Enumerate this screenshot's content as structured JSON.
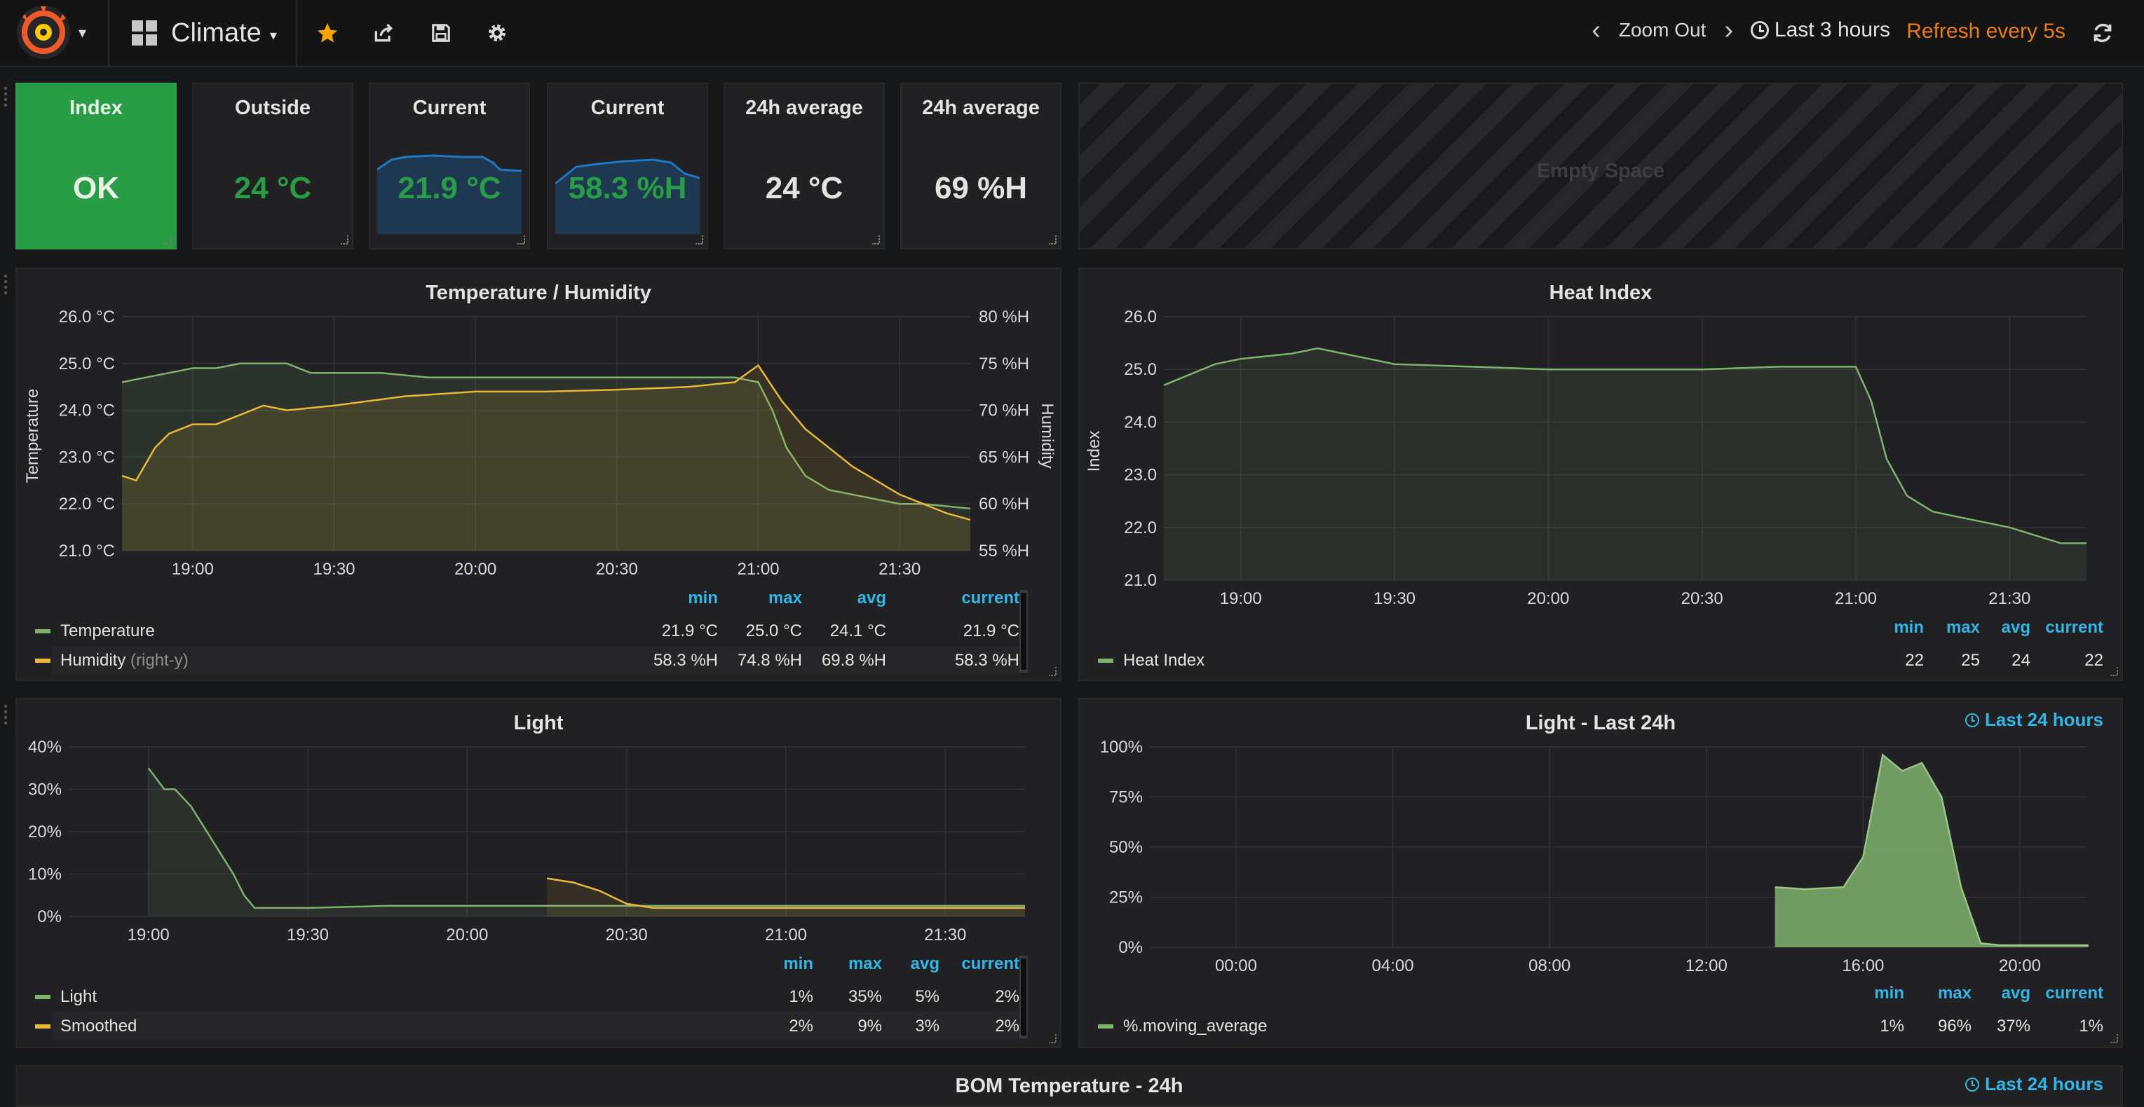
{
  "nav": {
    "dashboard_title": "Climate",
    "zoom_out_label": "Zoom Out",
    "time_range_label": "Last 3 hours",
    "refresh_label": "Refresh every 5s",
    "icons": [
      "grafana-logo-icon",
      "dashboard-grid-icon",
      "star-icon",
      "share-icon",
      "save-icon",
      "settings-gear-icon",
      "chevron-left-icon",
      "chevron-right-icon",
      "clock-icon",
      "refresh-icon"
    ],
    "colors": {
      "accent": "#eb7b18",
      "star": "#f7a600"
    }
  },
  "stats": [
    {
      "title": "Index",
      "value": "OK",
      "style": "ok"
    },
    {
      "title": "Outside",
      "value": "24 °C",
      "style": "green"
    },
    {
      "title": "Current",
      "value": "21.9 °C",
      "style": "green-spark"
    },
    {
      "title": "Current",
      "value": "58.3 %H",
      "style": "green-spark"
    },
    {
      "title": "24h average",
      "value": "24 °C",
      "style": "white"
    },
    {
      "title": "24h average",
      "value": "69 %H",
      "style": "white"
    }
  ],
  "empty_space": {
    "label": "Empty Space"
  },
  "temp_humidity": {
    "title": "Temperature / Humidity",
    "y_left_label": "Temperature",
    "y_right_label": "Humidity",
    "legend": {
      "headers": [
        "min",
        "max",
        "avg",
        "current"
      ],
      "rows": [
        {
          "name": "Temperature",
          "suffix": "",
          "min": "21.9 °C",
          "max": "25.0 °C",
          "avg": "24.1 °C",
          "current": "21.9 °C"
        },
        {
          "name": "Humidity",
          "suffix": "(right-y)",
          "min": "58.3 %H",
          "max": "74.8 %H",
          "avg": "69.8 %H",
          "current": "58.3 %H"
        }
      ]
    }
  },
  "heat_index": {
    "title": "Heat Index",
    "y_label": "Index",
    "legend": {
      "headers": [
        "min",
        "max",
        "avg",
        "current"
      ],
      "rows": [
        {
          "name": "Heat Index",
          "min": "22",
          "max": "25",
          "avg": "24",
          "current": "22"
        }
      ]
    }
  },
  "light": {
    "title": "Light",
    "legend": {
      "headers": [
        "min",
        "max",
        "avg",
        "current"
      ],
      "rows": [
        {
          "name": "Light",
          "min": "1%",
          "max": "35%",
          "avg": "5%",
          "current": "2%"
        },
        {
          "name": "Smoothed",
          "min": "2%",
          "max": "9%",
          "avg": "3%",
          "current": "2%"
        }
      ]
    }
  },
  "light_24h": {
    "title": "Light - Last 24h",
    "time_override": "Last 24 hours",
    "legend": {
      "headers": [
        "min",
        "max",
        "avg",
        "current"
      ],
      "rows": [
        {
          "name": "%.moving_average",
          "min": "1%",
          "max": "96%",
          "avg": "37%",
          "current": "1%"
        }
      ]
    }
  },
  "bom_temp": {
    "title": "BOM Temperature - 24h",
    "time_override": "Last 24 hours"
  },
  "chart_data": [
    {
      "type": "line",
      "title": "Temperature / Humidity",
      "x_ticks": [
        "19:00",
        "19:30",
        "20:00",
        "20:30",
        "21:00",
        "21:30"
      ],
      "y_left_ticks": [
        "26.0 °C",
        "25.0 °C",
        "24.0 °C",
        "23.0 °C",
        "22.0 °C",
        "21.0 °C"
      ],
      "y_right_ticks": [
        "80 %H",
        "75 %H",
        "70 %H",
        "65 %H",
        "60 %H",
        "55 %H"
      ],
      "ylim_left": [
        21,
        26
      ],
      "ylim_right": [
        55,
        80
      ],
      "xlim": [
        "18:45",
        "21:45"
      ],
      "grid": true,
      "legend_position": "bottom",
      "series": [
        {
          "name": "Temperature",
          "color": "#7eb26d",
          "axis": "left",
          "x": [
            "18:45",
            "18:50",
            "18:55",
            "19:00",
            "19:05",
            "19:10",
            "19:15",
            "19:20",
            "19:25",
            "19:30",
            "19:40",
            "19:50",
            "20:00",
            "20:15",
            "20:30",
            "20:45",
            "20:55",
            "21:00",
            "21:03",
            "21:06",
            "21:10",
            "21:15",
            "21:20",
            "21:25",
            "21:30",
            "21:35",
            "21:40",
            "21:45"
          ],
          "y": [
            24.6,
            24.7,
            24.8,
            24.9,
            24.9,
            25.0,
            25.0,
            25.0,
            24.8,
            24.8,
            24.8,
            24.7,
            24.7,
            24.7,
            24.7,
            24.7,
            24.7,
            24.6,
            24.0,
            23.2,
            22.6,
            22.3,
            22.2,
            22.1,
            22.0,
            22.0,
            21.95,
            21.9
          ]
        },
        {
          "name": "Humidity",
          "color": "#eab839",
          "axis": "right",
          "x": [
            "18:45",
            "18:48",
            "18:52",
            "18:55",
            "19:00",
            "19:05",
            "19:10",
            "19:15",
            "19:20",
            "19:30",
            "19:45",
            "20:00",
            "20:15",
            "20:30",
            "20:45",
            "20:55",
            "21:00",
            "21:05",
            "21:10",
            "21:15",
            "21:20",
            "21:25",
            "21:30",
            "21:35",
            "21:40",
            "21:45"
          ],
          "y": [
            63,
            62.5,
            66,
            67.5,
            68.5,
            68.5,
            69.5,
            70.5,
            70,
            70.5,
            71.5,
            72,
            72,
            72.2,
            72.5,
            73,
            74.8,
            71,
            68,
            66,
            64,
            62.5,
            61,
            60,
            59,
            58.3
          ]
        }
      ]
    },
    {
      "type": "line",
      "title": "Heat Index",
      "x_ticks": [
        "19:00",
        "19:30",
        "20:00",
        "20:30",
        "21:00",
        "21:30"
      ],
      "y_ticks": [
        "26.0",
        "25.0",
        "24.0",
        "23.0",
        "22.0",
        "21.0"
      ],
      "ylim": [
        21,
        26
      ],
      "xlim": [
        "18:45",
        "21:45"
      ],
      "grid": true,
      "legend_position": "bottom",
      "series": [
        {
          "name": "Heat Index",
          "color": "#7eb26d",
          "x": [
            "18:45",
            "18:50",
            "18:55",
            "19:00",
            "19:10",
            "19:15",
            "19:20",
            "19:30",
            "19:45",
            "20:00",
            "20:30",
            "20:45",
            "21:00",
            "21:03",
            "21:06",
            "21:10",
            "21:15",
            "21:20",
            "21:30",
            "21:40",
            "21:45"
          ],
          "y": [
            24.7,
            24.9,
            25.1,
            25.2,
            25.3,
            25.4,
            25.3,
            25.1,
            25.05,
            25.0,
            25.0,
            25.05,
            25.05,
            24.4,
            23.3,
            22.6,
            22.3,
            22.2,
            22.0,
            21.7,
            21.7
          ]
        }
      ]
    },
    {
      "type": "line",
      "title": "Light",
      "x_ticks": [
        "19:00",
        "19:30",
        "20:00",
        "20:30",
        "21:00",
        "21:30"
      ],
      "y_ticks": [
        "40%",
        "30%",
        "20%",
        "10%",
        "0%"
      ],
      "ylim": [
        0,
        40
      ],
      "xlim": [
        "18:45",
        "21:45"
      ],
      "grid": true,
      "legend_position": "bottom",
      "series": [
        {
          "name": "Light",
          "color": "#7eb26d",
          "x": [
            "19:00",
            "19:03",
            "19:05",
            "19:08",
            "19:13",
            "19:16",
            "19:18",
            "19:20",
            "19:30",
            "19:45",
            "20:00",
            "20:15",
            "20:30",
            "21:00",
            "21:30",
            "21:45"
          ],
          "y": [
            35,
            30,
            30,
            26,
            16,
            10,
            5,
            2,
            2,
            2.5,
            2.5,
            2.5,
            2.5,
            2.5,
            2.5,
            2.5
          ]
        },
        {
          "name": "Smoothed",
          "color": "#eab839",
          "x": [
            "20:15",
            "20:20",
            "20:25",
            "20:30",
            "20:35",
            "20:45",
            "21:00",
            "21:30",
            "21:45"
          ],
          "y": [
            9,
            8,
            6,
            3,
            2,
            2,
            2,
            2,
            2
          ]
        }
      ]
    },
    {
      "type": "area",
      "title": "Light - Last 24h",
      "x_ticks": [
        "00:00",
        "04:00",
        "08:00",
        "12:00",
        "16:00",
        "20:00"
      ],
      "y_ticks": [
        "100%",
        "75%",
        "50%",
        "25%",
        "0%"
      ],
      "ylim": [
        0,
        100
      ],
      "grid": true,
      "legend_position": "bottom",
      "series": [
        {
          "name": "%.moving_average",
          "color": "#7eb26d",
          "x": [
            "13:45",
            "14:30",
            "15:30",
            "16:00",
            "16:30",
            "17:00",
            "17:30",
            "18:00",
            "18:30",
            "19:00",
            "19:30",
            "20:00",
            "21:00",
            "21:45"
          ],
          "y": [
            30,
            29,
            30,
            45,
            96,
            88,
            92,
            75,
            30,
            2,
            1,
            1,
            1,
            1
          ]
        }
      ]
    }
  ]
}
